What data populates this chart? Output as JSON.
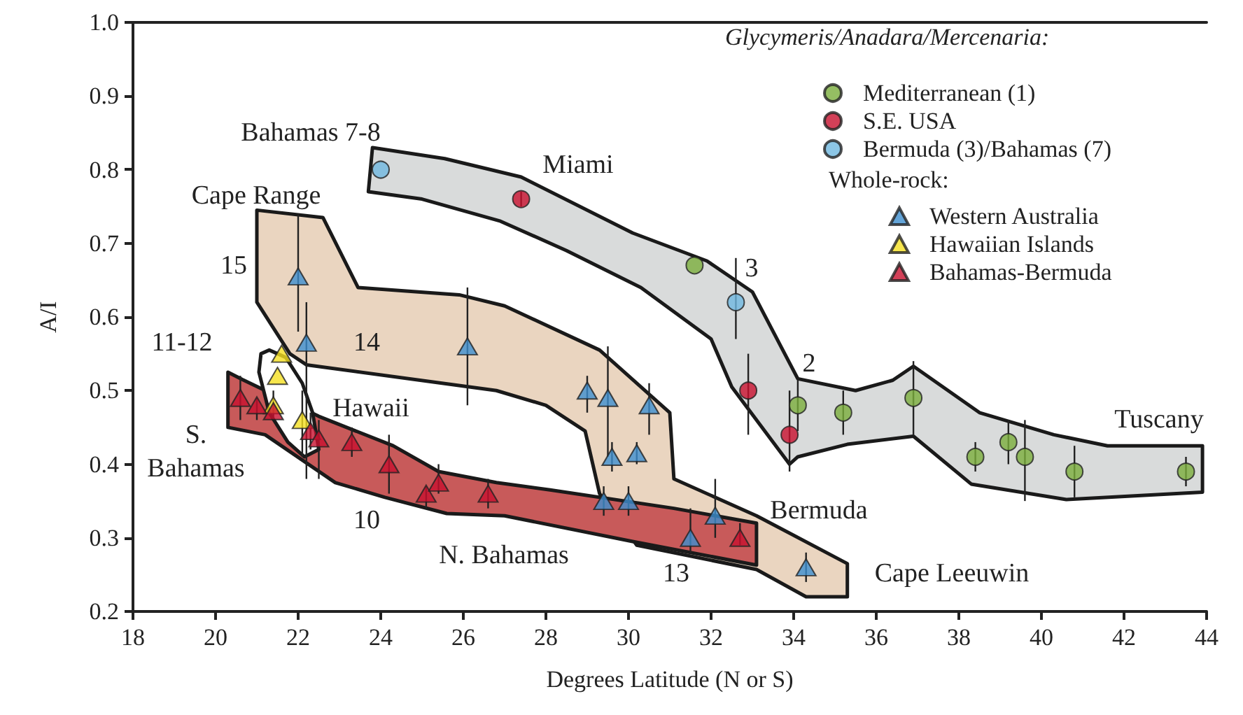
{
  "chart_data": {
    "type": "scatter",
    "xlabel": "Degrees Latitude (N or S)",
    "ylabel": "A/I",
    "xlim": [
      18,
      44
    ],
    "xticks": [
      18,
      20,
      22,
      24,
      26,
      28,
      30,
      32,
      34,
      36,
      38,
      40,
      42,
      44
    ],
    "ylim": [
      0.2,
      1
    ],
    "yticks": [
      0.2,
      0.3,
      0.4,
      0.5,
      0.6,
      0.7,
      0.8,
      0.9,
      {
        "value": 1,
        "label": "1.0"
      }
    ],
    "grid": false,
    "legend": "top right",
    "legend_title": [
      "Glycymeris/Anadara/Mercenaria:",
      "Whole-rock:"
    ],
    "series": [
      {
        "type": "area",
        "color": "#d9dbdb",
        "x": [
          23.8,
          25.55,
          27.4,
          30.1,
          31.9,
          33.0,
          34.1,
          35.5,
          36.4,
          36.9,
          38.5,
          40.3,
          41.6,
          43.9,
          43.9,
          40.6,
          38.3,
          36.9,
          35.3,
          34.1,
          33.9,
          32.5,
          32.0,
          30.3,
          28.5,
          26.9,
          25.0,
          23.7
        ],
        "values": [
          0.83,
          0.815,
          0.79,
          0.714,
          0.676,
          0.634,
          0.516,
          0.5,
          0.514,
          0.533,
          0.47,
          0.44,
          0.425,
          0.425,
          0.362,
          0.352,
          0.373,
          0.438,
          0.427,
          0.41,
          0.4,
          0.505,
          0.57,
          0.64,
          0.69,
          0.73,
          0.76,
          0.77
        ]
      },
      {
        "type": "area",
        "color": "#ead5c0",
        "x": [
          21.0,
          22.6,
          23.45,
          25.9,
          27.0,
          29.3,
          31.0,
          31.1,
          33.1,
          35.3,
          35.3,
          34.3,
          33.1,
          30.2,
          29.3,
          28.95,
          28.0,
          26.8,
          22.2,
          21.8,
          21.0
        ],
        "values": [
          0.745,
          0.735,
          0.64,
          0.63,
          0.615,
          0.555,
          0.47,
          0.38,
          0.33,
          0.265,
          0.22,
          0.22,
          0.257,
          0.29,
          0.36,
          0.445,
          0.48,
          0.5,
          0.535,
          0.55,
          0.62
        ]
      },
      {
        "type": "area",
        "color": "#c85a5a",
        "x": [
          20.3,
          20.65,
          22.5,
          24.3,
          25.4,
          26.8,
          28.1,
          31.1,
          33.1,
          33.1,
          30.1,
          27.0,
          25.6,
          24.1,
          22.9,
          21.2,
          20.3
        ],
        "values": [
          0.525,
          0.515,
          0.465,
          0.425,
          0.39,
          0.375,
          0.365,
          0.34,
          0.32,
          0.263,
          0.295,
          0.33,
          0.333,
          0.355,
          0.375,
          0.44,
          0.45
        ]
      },
      {
        "type": "area",
        "color": "#ffffff",
        "x": [
          21.3,
          21.7,
          22.1,
          22.35,
          22.5,
          22.15,
          21.75,
          21.3,
          21.05,
          21.1
        ],
        "values": [
          0.555,
          0.545,
          0.51,
          0.47,
          0.42,
          0.41,
          0.43,
          0.47,
          0.525,
          0.55
        ]
      },
      {
        "name": "Mediterranean (1)",
        "marker": "circle",
        "color": "#7aae3c",
        "x": [
          31.6,
          34.1,
          35.2,
          36.9,
          38.4,
          39.2,
          39.6,
          40.8,
          43.5
        ],
        "values": [
          0.67,
          0.48,
          0.47,
          0.49,
          0.41,
          0.43,
          0.41,
          0.39,
          0.39
        ],
        "errors": [
          null,
          0.035,
          0.03,
          0.05,
          0.02,
          0.03,
          [
            0.35,
            0.46
          ],
          0.035,
          0.02
        ]
      },
      {
        "name": "S.E. USA",
        "marker": "circle",
        "color": "#c8102e",
        "x": [
          27.4,
          32.9,
          33.9
        ],
        "values": [
          0.76,
          0.5,
          0.44
        ],
        "errors": [
          0.01,
          [
            0.44,
            0.55
          ],
          [
            0.39,
            0.5
          ]
        ]
      },
      {
        "name": "Bermuda (3)/Bahamas (7)",
        "marker": "circle",
        "color": "#6fb8e0",
        "x": [
          24.0,
          32.6
        ],
        "values": [
          0.8,
          0.62
        ],
        "errors": [
          null,
          [
            0.57,
            0.68
          ]
        ]
      },
      {
        "name": "Western Australia",
        "marker": "triangle",
        "color": "#3d8fcf",
        "x": [
          22.0,
          22.2,
          26.1,
          29.0,
          29.5,
          29.6,
          30.2,
          30.5,
          29.4,
          30.0,
          31.5,
          32.1,
          34.3
        ],
        "values": [
          0.655,
          0.565,
          0.56,
          0.5,
          0.49,
          0.41,
          0.415,
          0.48,
          0.35,
          0.35,
          0.3,
          0.33,
          0.26
        ],
        "errors": [
          [
            0.58,
            0.74
          ],
          [
            0.38,
            0.62
          ],
          [
            0.48,
            0.64
          ],
          [
            0.47,
            0.52
          ],
          [
            0.41,
            0.56
          ],
          [
            0.39,
            0.43
          ],
          [
            0.4,
            0.43
          ],
          [
            0.44,
            0.51
          ],
          [
            0.33,
            0.37
          ],
          [
            0.33,
            0.37
          ],
          [
            0.28,
            0.34
          ],
          [
            0.3,
            0.38
          ],
          [
            0.24,
            0.28
          ]
        ]
      },
      {
        "name": "Hawaiian Islands",
        "marker": "triangle",
        "color": "#f5e020",
        "x": [
          21.6,
          21.5,
          21.4,
          22.1
        ],
        "values": [
          0.55,
          0.52,
          0.48,
          0.46
        ],
        "errors": [
          null,
          null,
          [
            0.46,
            0.5
          ],
          [
            0.41,
            0.5
          ]
        ]
      },
      {
        "name": "Bahamas-Bermuda",
        "marker": "triangle",
        "color": "#c8102e",
        "x": [
          20.6,
          21.0,
          21.4,
          22.3,
          22.5,
          23.3,
          24.2,
          25.1,
          25.4,
          26.6,
          32.7
        ],
        "values": [
          0.49,
          0.48,
          0.472,
          0.445,
          0.435,
          0.43,
          0.4,
          0.36,
          0.375,
          0.36,
          0.3
        ],
        "errors": [
          [
            0.46,
            0.52
          ],
          [
            0.46,
            0.49
          ],
          null,
          [
            0.42,
            0.47
          ],
          [
            0.38,
            0.46
          ],
          [
            0.41,
            0.45
          ],
          [
            0.36,
            0.44
          ],
          [
            0.34,
            0.37
          ],
          [
            0.36,
            0.4
          ],
          [
            0.34,
            0.38
          ],
          [
            0.29,
            0.32
          ]
        ]
      }
    ],
    "annotations": [
      "Bahamas 7-8",
      "Miami",
      "Cape Range",
      "15",
      "14",
      "11-12",
      "Hawaii",
      "S.\nBahamas",
      "10",
      "N. Bahamas",
      "13",
      "Bermuda",
      "Cape Leeuwin",
      "Tuscany",
      "3",
      "2"
    ]
  }
}
